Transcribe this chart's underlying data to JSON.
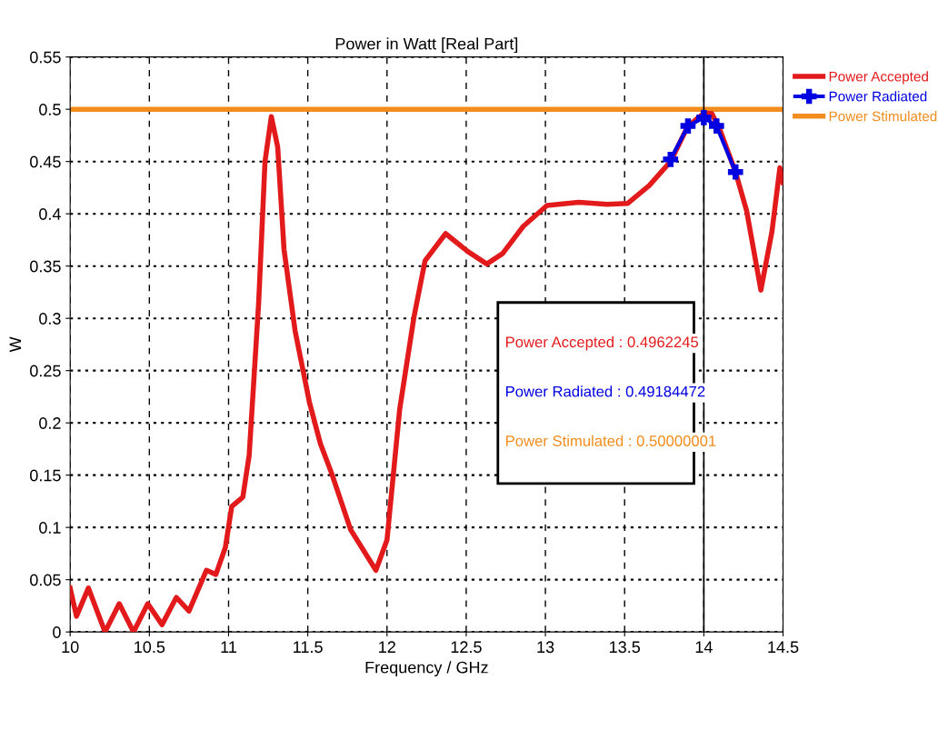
{
  "chart_data": {
    "type": "line",
    "title": "Power in Watt [Real Part]",
    "xlabel": "Frequency / GHz",
    "ylabel": "W",
    "series": [
      {
        "name": "Power Accepted",
        "color": "#e31a1c",
        "marker": "none",
        "x": [
          10.0,
          10.04,
          10.115,
          10.22,
          10.31,
          10.4,
          10.49,
          10.58,
          10.67,
          10.75,
          10.86,
          10.92,
          10.98,
          11.02,
          11.09,
          11.13,
          11.19,
          11.23,
          11.27,
          11.31,
          11.35,
          11.42,
          11.51,
          11.58,
          11.65,
          11.77,
          11.93,
          12.0,
          12.08,
          12.17,
          12.24,
          12.37,
          12.51,
          12.63,
          12.73,
          12.86,
          13.01,
          13.21,
          13.39,
          13.52,
          13.655,
          13.79,
          13.9,
          14.0,
          14.05,
          14.1,
          14.2,
          14.27,
          14.36,
          14.43,
          14.48,
          14.5
        ],
        "values": [
          0.042,
          0.015,
          0.042,
          0.0,
          0.027,
          0.0,
          0.027,
          0.007,
          0.033,
          0.02,
          0.059,
          0.055,
          0.081,
          0.12,
          0.129,
          0.169,
          0.315,
          0.45,
          0.493,
          0.464,
          0.366,
          0.288,
          0.22,
          0.18,
          0.152,
          0.098,
          0.059,
          0.088,
          0.213,
          0.301,
          0.355,
          0.381,
          0.364,
          0.352,
          0.362,
          0.388,
          0.408,
          0.411,
          0.409,
          0.41,
          0.427,
          0.45,
          0.484,
          0.496,
          0.496,
          0.481,
          0.44,
          0.403,
          0.327,
          0.383,
          0.444,
          0.43
        ]
      },
      {
        "name": "Power Radiated",
        "color": "#0000e0",
        "marker": "cross",
        "x": [
          13.79,
          13.9,
          14.0,
          14.08,
          14.2
        ],
        "values": [
          0.452,
          0.484,
          0.492,
          0.484,
          0.44
        ]
      },
      {
        "name": "Power Stimulated",
        "color": "#f28c1c",
        "marker": "none",
        "x": [
          10.0,
          14.5
        ],
        "values": [
          0.5,
          0.5
        ]
      }
    ],
    "ref_lines": [
      {
        "axis": "x",
        "value": 14,
        "color": "#000000"
      }
    ],
    "annotations": [
      "Power Accepted : 0.4962245",
      "Power Radiated : 0.49184472",
      "Power Stimulated : 0.50000001"
    ],
    "xlim": [
      10,
      14.5
    ],
    "xticks": [
      10,
      10.5,
      11,
      11.5,
      12,
      12.5,
      13,
      13.5,
      14,
      14.5
    ],
    "ylim": [
      0,
      0.55
    ],
    "yticks": [
      0,
      0.05,
      0.1,
      0.15,
      0.2,
      0.25,
      0.3,
      0.35,
      0.4,
      0.45,
      0.5,
      0.55
    ],
    "grid": true,
    "legend": "right",
    "line_style": "solid"
  }
}
